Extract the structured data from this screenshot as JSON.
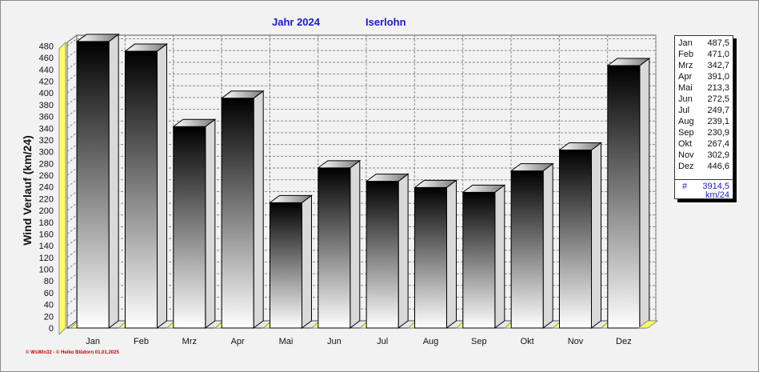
{
  "title": "Jahr  2024",
  "location": "Iserlohn",
  "footer": "© WsWin32  -  © Heiko Blüdorn  01.01.2025",
  "legend": {
    "rows": [
      {
        "month": "Jan",
        "value": "487,5"
      },
      {
        "month": "Feb",
        "value": "471,0"
      },
      {
        "month": "Mrz",
        "value": "342,7"
      },
      {
        "month": "Apr",
        "value": "391,0"
      },
      {
        "month": "Mai",
        "value": "213,3"
      },
      {
        "month": "Jun",
        "value": "272,5"
      },
      {
        "month": "Jul",
        "value": "249,7"
      },
      {
        "month": "Aug",
        "value": "239,1"
      },
      {
        "month": "Sep",
        "value": "230,9"
      },
      {
        "month": "Okt",
        "value": "267,4"
      },
      {
        "month": "Nov",
        "value": "302,9"
      },
      {
        "month": "Dez",
        "value": "446,6"
      }
    ],
    "total_symbol": "#",
    "total": "3914,5",
    "unit": "km/24"
  },
  "colors": {
    "title": "#1a1ad0",
    "bar_top": "#000000",
    "bar_bottom": "#ffffff",
    "floor": "#ffff66",
    "grid": "#888888",
    "footer": "#cc0000"
  },
  "chart_data": {
    "type": "bar",
    "ylabel": "Wind Verlauf  (km/24)",
    "categories": [
      "Jan",
      "Feb",
      "Mrz",
      "Apr",
      "Mai",
      "Jun",
      "Jul",
      "Aug",
      "Sep",
      "Okt",
      "Nov",
      "Dez"
    ],
    "values": [
      487.5,
      471.0,
      342.7,
      391.0,
      213.3,
      272.5,
      249.7,
      239.1,
      230.9,
      267.4,
      302.9,
      446.6
    ],
    "ylim": [
      0,
      490
    ],
    "yticks": [
      0,
      20,
      40,
      60,
      80,
      100,
      120,
      140,
      160,
      180,
      200,
      220,
      240,
      260,
      280,
      300,
      320,
      340,
      360,
      380,
      400,
      420,
      440,
      460,
      480
    ],
    "grid": true
  }
}
